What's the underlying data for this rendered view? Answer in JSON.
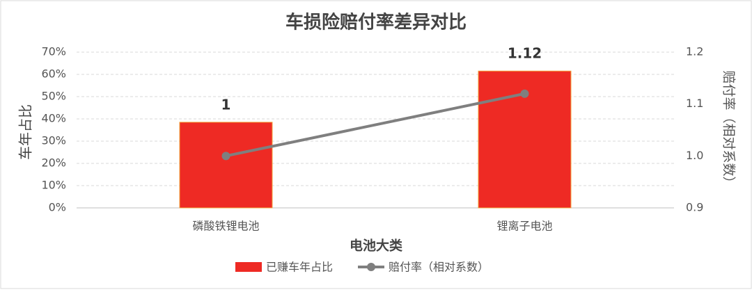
{
  "chart_data": {
    "type": "combo",
    "title": "车损险赔付率差异对比",
    "categories": [
      "磷酸铁锂电池",
      "锂离子电池"
    ],
    "x_label": "电池大类",
    "y_label": "车年占比",
    "y2_label": "赔付率（相对系数）",
    "series": [
      {
        "name": "已赚车年占比",
        "type": "bar",
        "color": "#ee2a24",
        "values": [
          38.5,
          61.5
        ]
      },
      {
        "name": "赔付率（相对系数）",
        "type": "line",
        "axis": "y2",
        "color": "#7f7f7f",
        "values": [
          1,
          1.12
        ]
      }
    ],
    "ylim": [
      0,
      70
    ],
    "yticks": [
      {
        "value": 0,
        "label": "0%"
      },
      {
        "value": 10,
        "label": "10%"
      },
      {
        "value": 20,
        "label": "20%"
      },
      {
        "value": 30,
        "label": "30%"
      },
      {
        "value": 40,
        "label": "40%"
      },
      {
        "value": 50,
        "label": "50%"
      },
      {
        "value": 60,
        "label": "60%"
      },
      {
        "value": 70,
        "label": "70%"
      }
    ],
    "y2lim": [
      0.9,
      1.2
    ],
    "y2ticks": [
      0.9,
      {
        "value": 1.0,
        "label": "1.0"
      },
      1.1,
      1.2
    ],
    "grid": true,
    "legend": "bottom"
  }
}
